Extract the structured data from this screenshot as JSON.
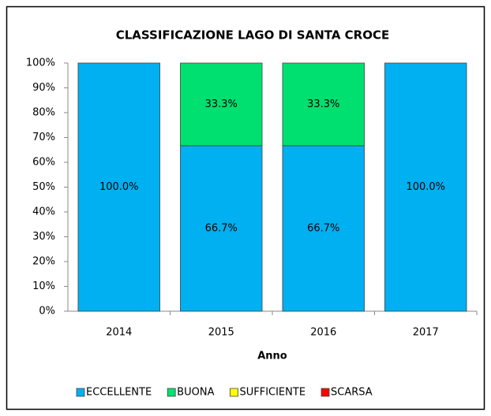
{
  "chart_data": {
    "type": "stacked_bar",
    "title": "CLASSIFICAZIONE LAGO DI SANTA CROCE",
    "x_label": "Anno",
    "categories": [
      "2014",
      "2015",
      "2016",
      "2017"
    ],
    "series": [
      {
        "name": "ECCELLENTE",
        "color": "#00b0f0",
        "values": [
          100,
          66.7,
          66.7,
          100
        ],
        "value_labels": [
          "100.0%",
          "66.7%",
          "66.7%",
          "100.0%"
        ]
      },
      {
        "name": "BUONA",
        "color": "#00e070",
        "values": [
          0,
          33.3,
          33.3,
          0
        ],
        "value_labels": [
          null,
          "33.3%",
          "33.3%",
          null
        ]
      },
      {
        "name": "SUFFICIENTE",
        "color": "#ffff00",
        "values": [
          0,
          0,
          0,
          0
        ],
        "value_labels": [
          null,
          null,
          null,
          null
        ]
      },
      {
        "name": "SCARSA",
        "color": "#ff0000",
        "values": [
          0,
          0,
          0,
          0
        ],
        "value_labels": [
          null,
          null,
          null,
          null
        ]
      }
    ],
    "ylim": [
      0,
      100
    ],
    "yticks": [
      {
        "value": 0,
        "label": "0%"
      },
      {
        "value": 10,
        "label": "10%"
      },
      {
        "value": 20,
        "label": "20%"
      },
      {
        "value": 30,
        "label": "30%"
      },
      {
        "value": 40,
        "label": "40%"
      },
      {
        "value": 50,
        "label": "50%"
      },
      {
        "value": 60,
        "label": "60%"
      },
      {
        "value": 70,
        "label": "70%"
      },
      {
        "value": 80,
        "label": "80%"
      },
      {
        "value": 90,
        "label": "90%"
      },
      {
        "value": 100,
        "label": "100%"
      }
    ],
    "legend": "bottom"
  }
}
